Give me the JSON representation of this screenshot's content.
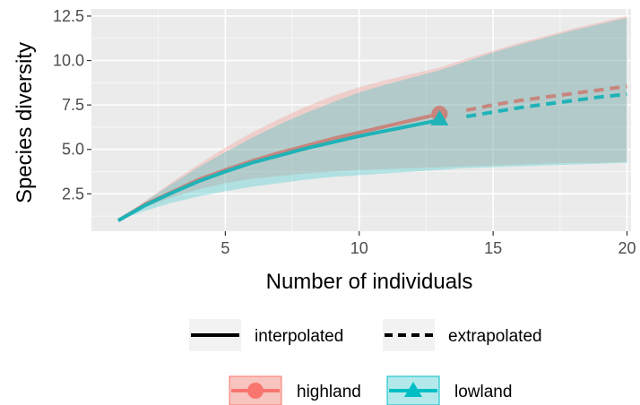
{
  "chart_data": {
    "type": "line",
    "xlabel": "Number of individuals",
    "ylabel": "Species diversity",
    "xlim": [
      0,
      20.15
    ],
    "ylim": [
      0.4,
      12.9
    ],
    "x_ticks": [
      5,
      10,
      15,
      20
    ],
    "x_tick_labels": [
      "5",
      "10",
      "15",
      "20"
    ],
    "y_ticks": [
      2.5,
      5.0,
      7.5,
      10.0,
      12.5
    ],
    "y_tick_labels": [
      "2.5",
      "5.0",
      "7.5",
      "10.0",
      "12.5"
    ],
    "grid": true,
    "background": "#ebebeb",
    "legend_position": "bottom",
    "linetype_legend": [
      {
        "label": "interpolated",
        "style": "solid"
      },
      {
        "label": "extrapolated",
        "style": "dashed"
      }
    ],
    "observed_at": 13,
    "series": [
      {
        "name": "highland",
        "color": "#c7857d",
        "ribbon_color": "#f8766d",
        "marker": "circle",
        "interpolated": {
          "x": [
            1,
            2,
            3,
            4,
            5,
            6,
            7,
            8,
            9,
            10,
            11,
            12,
            13
          ],
          "y": [
            1.0,
            1.9,
            2.6,
            3.3,
            3.85,
            4.35,
            4.8,
            5.2,
            5.6,
            5.95,
            6.3,
            6.65,
            7.0
          ]
        },
        "extrapolated": {
          "x": [
            14,
            15,
            16,
            17,
            18,
            19,
            20
          ],
          "y": [
            7.2,
            7.5,
            7.75,
            7.95,
            8.15,
            8.35,
            8.55
          ]
        },
        "ribbon": {
          "x": [
            1,
            2,
            3,
            4,
            5,
            6,
            7,
            8,
            9,
            10,
            11,
            12,
            13,
            14,
            15,
            16,
            17,
            18,
            19,
            20
          ],
          "lower": [
            1.0,
            1.75,
            2.3,
            2.75,
            3.1,
            3.35,
            3.5,
            3.65,
            3.75,
            3.85,
            3.9,
            3.95,
            4.0,
            4.05,
            4.1,
            4.15,
            4.2,
            4.25,
            4.25,
            4.3
          ],
          "upper": [
            1.0,
            2.1,
            3.15,
            4.15,
            5.1,
            5.95,
            6.7,
            7.4,
            8.0,
            8.5,
            8.9,
            9.25,
            9.6,
            10.1,
            10.55,
            11.0,
            11.4,
            11.8,
            12.15,
            12.5
          ]
        }
      },
      {
        "name": "lowland",
        "color": "#1fb3b8",
        "ribbon_color": "#00bfc4",
        "marker": "triangle",
        "interpolated": {
          "x": [
            1,
            2,
            3,
            4,
            5,
            6,
            7,
            8,
            9,
            10,
            11,
            12,
            13
          ],
          "y": [
            1.0,
            1.85,
            2.55,
            3.2,
            3.75,
            4.25,
            4.65,
            5.05,
            5.4,
            5.75,
            6.05,
            6.35,
            6.65
          ]
        },
        "extrapolated": {
          "x": [
            14,
            15,
            16,
            17,
            18,
            19,
            20
          ],
          "y": [
            6.85,
            7.1,
            7.35,
            7.55,
            7.75,
            7.95,
            8.1
          ]
        },
        "ribbon": {
          "x": [
            1,
            2,
            3,
            4,
            5,
            6,
            7,
            8,
            9,
            10,
            11,
            12,
            13,
            14,
            15,
            16,
            17,
            18,
            19,
            20
          ],
          "lower": [
            1.0,
            1.55,
            2.0,
            2.35,
            2.65,
            2.9,
            3.1,
            3.3,
            3.45,
            3.55,
            3.65,
            3.75,
            3.85,
            3.95,
            4.0,
            4.05,
            4.1,
            4.15,
            4.2,
            4.25
          ],
          "upper": [
            1.0,
            2.05,
            3.05,
            4.0,
            4.85,
            5.65,
            6.4,
            7.05,
            7.65,
            8.2,
            8.65,
            9.05,
            9.45,
            9.95,
            10.45,
            10.9,
            11.3,
            11.7,
            12.05,
            12.4
          ]
        }
      }
    ]
  }
}
